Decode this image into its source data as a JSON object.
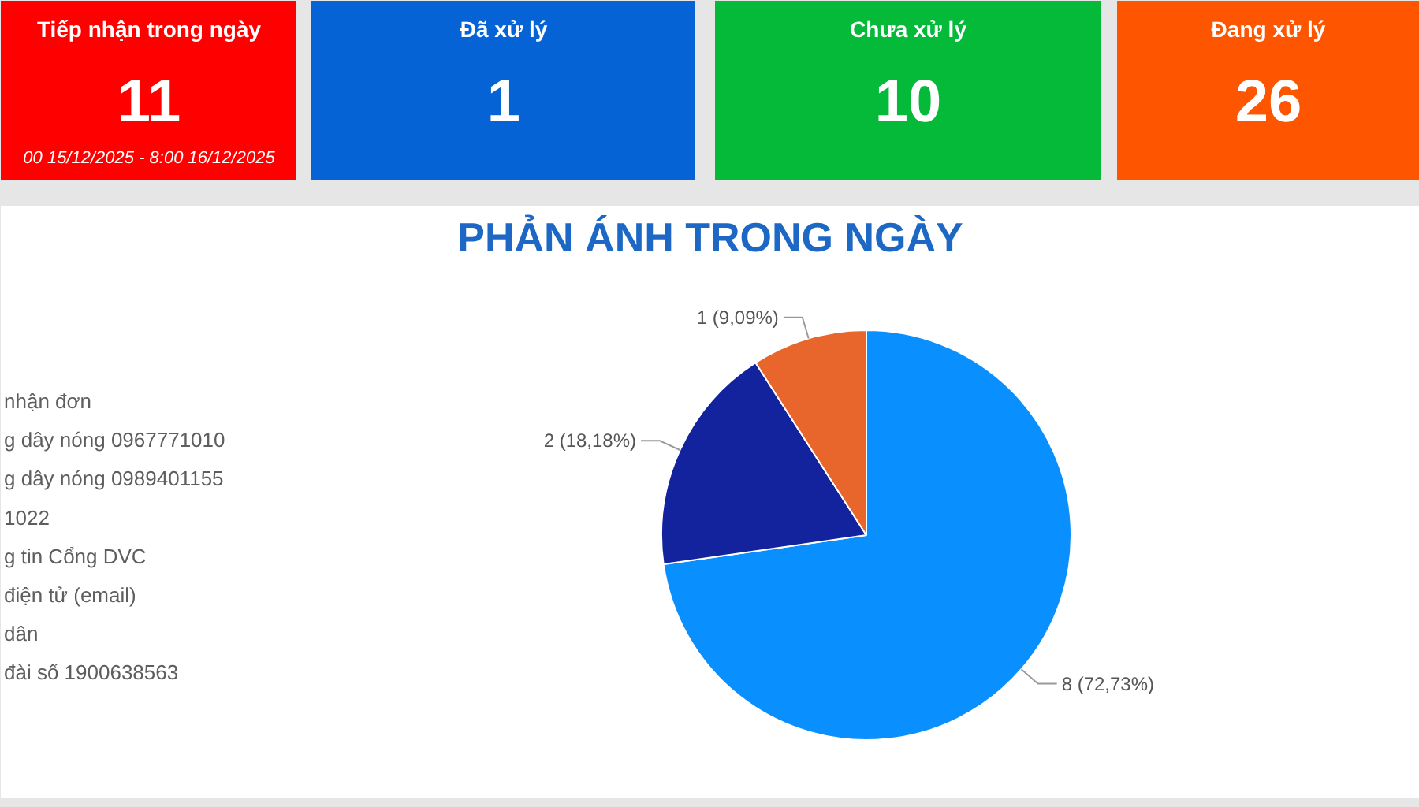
{
  "chart_data": [
    {
      "type": "other",
      "title": "Tiếp nhận trong ngày",
      "annotations": [
        "11",
        "00 15/12/2025 - 8:00 16/12/2025"
      ],
      "color": "#fe0000"
    },
    {
      "type": "other",
      "title": "Đã xử lý",
      "annotations": [
        "1"
      ],
      "color": "#0563d6"
    },
    {
      "type": "other",
      "title": "Chưa xử lý",
      "annotations": [
        "10"
      ],
      "color": "#04ba38"
    },
    {
      "type": "other",
      "title": "Đang xử lý",
      "annotations": [
        "26"
      ],
      "color": "#fe5500"
    },
    {
      "type": "pie",
      "title": "PHẢN ÁNH TRONG NGÀY",
      "categories": [
        null,
        null,
        null
      ],
      "values": [
        8,
        2,
        1
      ],
      "colors": [
        "#0a90fe",
        "#13239d",
        "#e8662c"
      ],
      "value_labels": [
        "8 (72,73%)",
        "2 (18,18%)",
        "1 (9,09%)"
      ],
      "annotations": [
        "nhận đơn",
        "g dây nóng 0967771010",
        "g dây nóng 0989401155",
        "1022",
        "g tin Cổng DVC",
        "điện tử (email)",
        "dân",
        "đài số 1900638563"
      ]
    }
  ]
}
